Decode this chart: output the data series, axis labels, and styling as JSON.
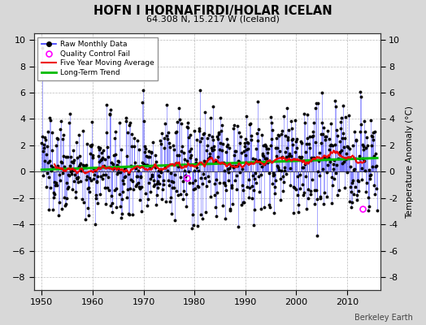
{
  "title": "HOFN I HORNAFIRDI/HOLAR ICELAN",
  "subtitle": "64.308 N, 15.217 W (Iceland)",
  "ylabel": "Temperature Anomaly (°C)",
  "watermark": "Berkeley Earth",
  "xlim": [
    1948.5,
    2016.5
  ],
  "ylim": [
    -9,
    10.5
  ],
  "yticks": [
    -8,
    -6,
    -4,
    -2,
    0,
    2,
    4,
    6,
    8,
    10
  ],
  "xticks": [
    1950,
    1960,
    1970,
    1980,
    1990,
    2000,
    2010
  ],
  "bg_color": "#d8d8d8",
  "plot_bg_color": "#ffffff",
  "line_color": "#3333ff",
  "line_alpha": 0.6,
  "marker_color": "#000000",
  "ma_color": "#ee0000",
  "trend_color": "#00bb00",
  "qc_color": "#ff00ff",
  "seed": 137
}
